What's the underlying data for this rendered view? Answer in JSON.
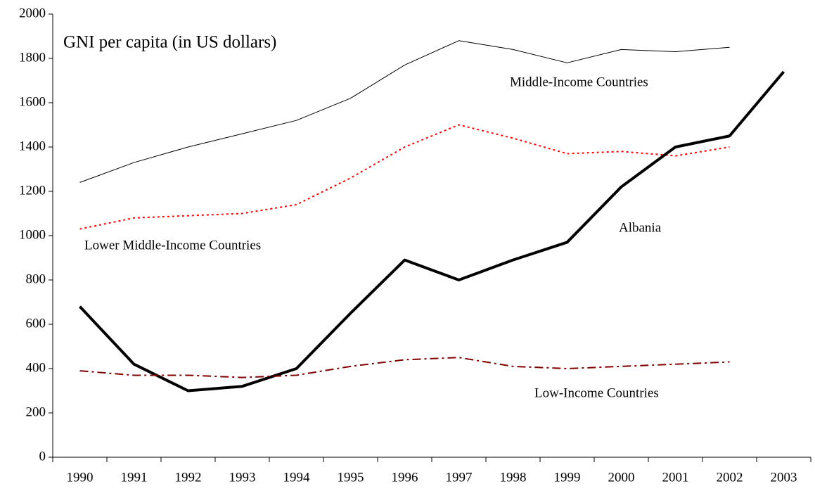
{
  "chart_data": {
    "type": "line",
    "title": "GNI per capita (in US dollars)",
    "categories": [
      "1990",
      "1991",
      "1992",
      "1993",
      "1994",
      "1995",
      "1996",
      "1997",
      "1998",
      "1999",
      "2000",
      "2001",
      "2002",
      "2003"
    ],
    "series": [
      {
        "name": "Middle-Income Countries",
        "color": "#000000",
        "width": 1,
        "dash": "solid",
        "values": [
          1240,
          1330,
          1400,
          1460,
          1520,
          1620,
          1770,
          1880,
          1840,
          1780,
          1840,
          1830,
          1850,
          null
        ]
      },
      {
        "name": "Lower Middle-Income Countries",
        "color": "#ff0000",
        "width": 2,
        "dash": "dotted",
        "values": [
          1030,
          1080,
          1090,
          1100,
          1140,
          1260,
          1400,
          1500,
          1440,
          1370,
          1380,
          1360,
          1400,
          null
        ]
      },
      {
        "name": "Albania",
        "color": "#000000",
        "width": 4,
        "dash": "solid",
        "values": [
          680,
          420,
          300,
          320,
          400,
          650,
          890,
          800,
          890,
          970,
          1220,
          1400,
          1450,
          1740
        ]
      },
      {
        "name": "Low-Income Countries",
        "color": "#800000",
        "width": 2,
        "dash": "dashdot",
        "values": [
          390,
          370,
          370,
          360,
          370,
          410,
          440,
          450,
          410,
          400,
          410,
          420,
          430,
          null
        ]
      }
    ],
    "ylim": [
      0,
      2000
    ],
    "yticks": [
      0,
      200,
      400,
      600,
      800,
      1000,
      1200,
      1400,
      1600,
      1800,
      2000
    ],
    "grid": false
  }
}
